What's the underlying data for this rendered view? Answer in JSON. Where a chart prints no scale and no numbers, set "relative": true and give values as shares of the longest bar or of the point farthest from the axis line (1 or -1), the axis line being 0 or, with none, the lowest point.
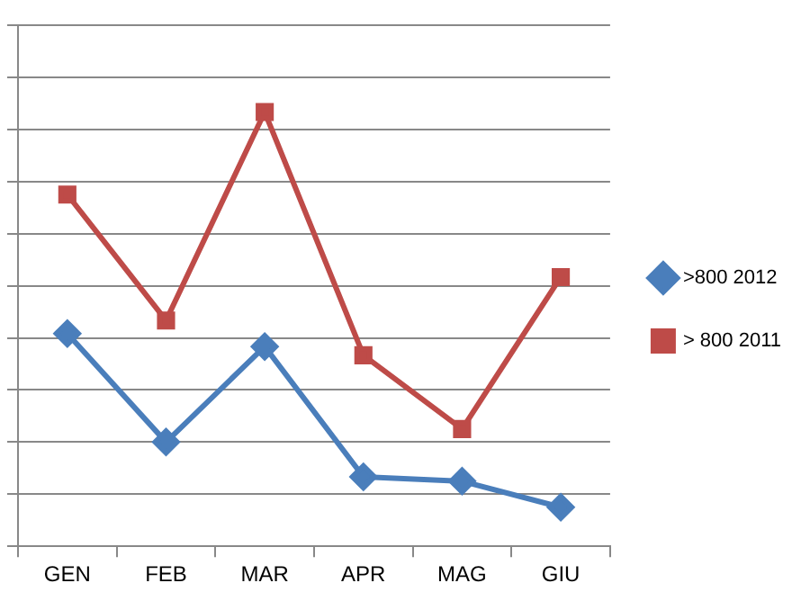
{
  "chart_data": {
    "type": "line",
    "relative": true,
    "categories": [
      "GEN",
      "FEB",
      "MAR",
      "APR",
      "MAG",
      "GIU"
    ],
    "series": [
      {
        "name": ">800 2012",
        "color": "#4a7ebb",
        "marker": "diamond",
        "values": [
          0.49,
          0.24,
          0.46,
          0.16,
          0.15,
          0.09
        ]
      },
      {
        "name": "> 800 2011",
        "color": "#be4b48",
        "marker": "square",
        "values": [
          0.81,
          0.52,
          1,
          0.44,
          0.27,
          0.62
        ]
      }
    ],
    "grid": "y",
    "legend": "right",
    "line_style": "solid"
  }
}
